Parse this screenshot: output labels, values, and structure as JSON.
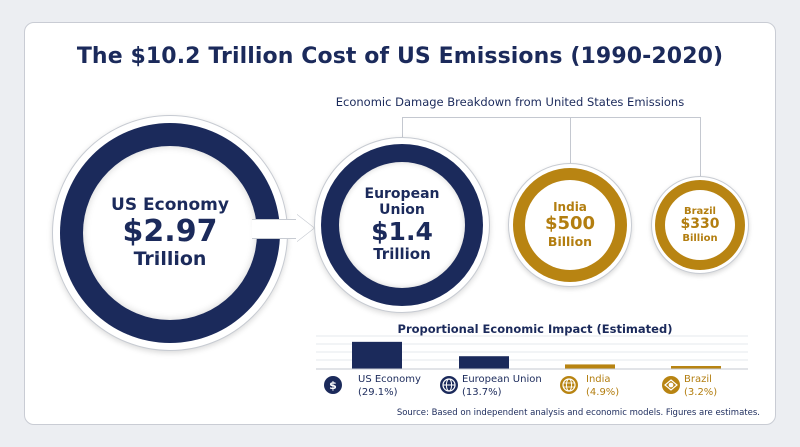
{
  "title": "The $10.2 Trillion Cost of US Emissions (1990-2020)",
  "subtitle": "Economic Damage Breakdown from United States Emissions",
  "colors": {
    "navy": "#1b2a5b",
    "gold": "#b88412",
    "background": "#eceef2"
  },
  "circles": [
    {
      "name": "US Economy",
      "lines": [
        "US Economy",
        "$2.97",
        "Trillion"
      ]
    },
    {
      "name": "European Union",
      "lines": [
        "European",
        "Union",
        "$1.4",
        "Trillion"
      ]
    },
    {
      "name": "India",
      "lines": [
        "India",
        "$500",
        "Billion"
      ]
    },
    {
      "name": "Brazil",
      "lines": [
        "Brazil",
        "$330",
        "Billion"
      ]
    }
  ],
  "chart_data": {
    "type": "bar",
    "title": "Proportional Economic Impact (Estimated)",
    "categories": [
      "US Economy",
      "European Union",
      "India",
      "Brazil"
    ],
    "values": [
      29.1,
      13.7,
      4.9,
      3.2
    ],
    "value_labels": [
      "(29.1%)",
      "(13.7%)",
      "(4.9%)",
      "(3.2%)"
    ],
    "colors": [
      "#1b2a5b",
      "#1b2a5b",
      "#b88412",
      "#b88412"
    ],
    "ylim": [
      0,
      30
    ],
    "grid": true
  },
  "icons": [
    "dollar-coins-icon",
    "globe-icon",
    "globe-grid-icon",
    "brazil-flag-icon"
  ],
  "source": "Source: Based on independent analysis and economic models. Figures are estimates."
}
